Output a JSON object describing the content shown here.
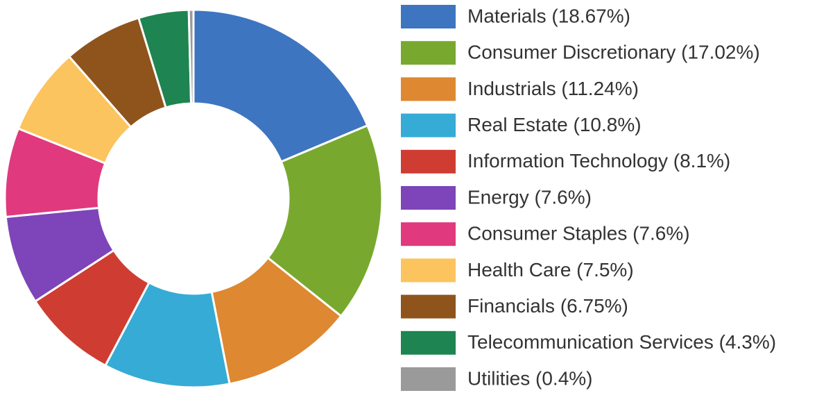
{
  "chart_data": {
    "type": "donut",
    "categories": [
      "Materials (18.67%)",
      "Consumer Discretionary (17.02%)",
      "Industrials (11.24%)",
      "Real Estate (10.8%)",
      "Information Technology (8.1%)",
      "Energy (7.6%)",
      "Consumer Staples (7.6%)",
      "Health Care (7.5%)",
      "Financials (6.75%)",
      "Telecommunication Services (4.3%)",
      "Utilities (0.4%)"
    ],
    "values": [
      18.67,
      17.02,
      11.24,
      10.8,
      8.1,
      7.6,
      7.6,
      7.5,
      6.75,
      4.3,
      0.4
    ],
    "colors": [
      "#3e75c0",
      "#78a92e",
      "#de8831",
      "#36abd5",
      "#cf3d32",
      "#7d45b9",
      "#e0397e",
      "#fcc45e",
      "#8f541c",
      "#1e8451",
      "#9a9a9a"
    ],
    "legend": "right"
  }
}
